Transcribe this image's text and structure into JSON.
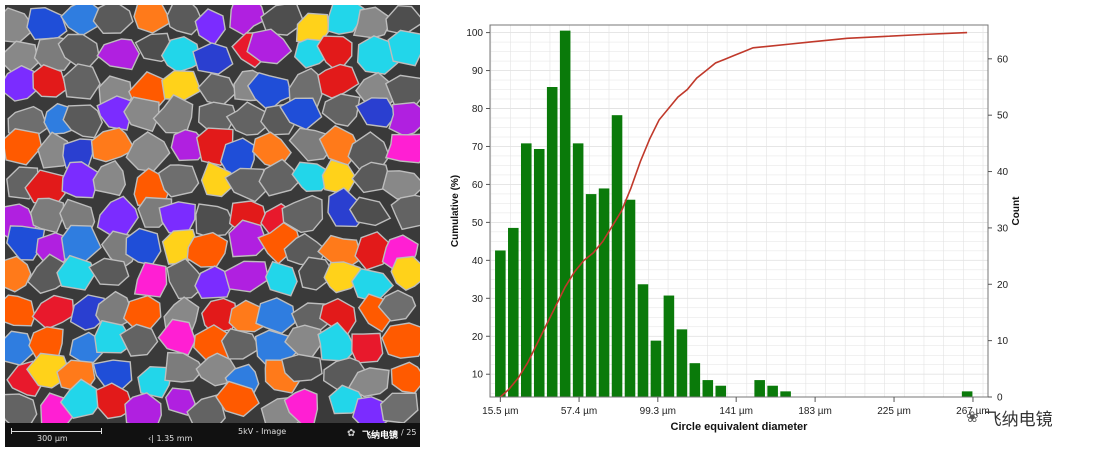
{
  "sem_panel": {
    "scale_label": "300 µm",
    "field_width": "‹| 1.35 mm",
    "mode": "5kV - Image",
    "watermark_small": "飞纳电镜",
    "trailing": "/ 25"
  },
  "watermark": "飞纳电镜",
  "colors": {
    "bar": "#0a7a0a",
    "cumulative": "#c0392b",
    "grid": "#e3e3e3"
  },
  "chart_data": {
    "type": "bar",
    "title": "",
    "xlabel": "Circle equivalent diameter",
    "ylabel_left": "Cumulative (%)",
    "ylabel_right": "Count",
    "x_range": [
      10,
      275
    ],
    "y_left_range": [
      4,
      102
    ],
    "y_right_range": [
      0,
      66
    ],
    "x_ticks": [
      {
        "value": 15.5,
        "label": "15.5 µm"
      },
      {
        "value": 57.4,
        "label": "57.4 µm"
      },
      {
        "value": 99.3,
        "label": "99.3 µm"
      },
      {
        "value": 141,
        "label": "141 µm"
      },
      {
        "value": 183,
        "label": "183 µm"
      },
      {
        "value": 225,
        "label": "225 µm"
      },
      {
        "value": 267,
        "label": "267 µm"
      }
    ],
    "y_left_ticks": [
      10,
      20,
      30,
      40,
      50,
      60,
      70,
      80,
      90,
      100
    ],
    "y_right_ticks": [
      0,
      10,
      20,
      30,
      40,
      50,
      60
    ],
    "bin_width": 6.9,
    "bin_centers": [
      15.5,
      22.4,
      29.3,
      36.2,
      43.1,
      50.0,
      56.9,
      63.8,
      70.7,
      77.6,
      84.5,
      91.4,
      98.3,
      105.2,
      112.1,
      119.0,
      125.9,
      132.8,
      139.7,
      146.6,
      153.5,
      160.4,
      167.3,
      174.2,
      181.1,
      188.0,
      194.9,
      263.9
    ],
    "counts": [
      26,
      30,
      45,
      44,
      55,
      65,
      45,
      36,
      37,
      50,
      35,
      20,
      10,
      18,
      12,
      6,
      3,
      2,
      0,
      0,
      3,
      2,
      1,
      0,
      0,
      0,
      0,
      1
    ],
    "cumulative_curve": {
      "x": [
        15.5,
        20,
        25,
        30,
        35,
        40,
        45,
        50,
        55,
        60,
        65,
        70,
        75,
        80,
        85,
        90,
        95,
        100,
        105,
        110,
        115,
        120,
        125,
        130,
        135,
        140,
        145,
        150,
        160,
        170,
        180,
        190,
        200,
        220,
        240,
        263.9
      ],
      "y": [
        4,
        6,
        9,
        13,
        18,
        23,
        28,
        33,
        37,
        40,
        42,
        45,
        49,
        53,
        59,
        66,
        72,
        77,
        80,
        83,
        85,
        88,
        90,
        92,
        93,
        94,
        95,
        96,
        96.5,
        97,
        97.5,
        98,
        98.5,
        99,
        99.5,
        100
      ]
    }
  }
}
